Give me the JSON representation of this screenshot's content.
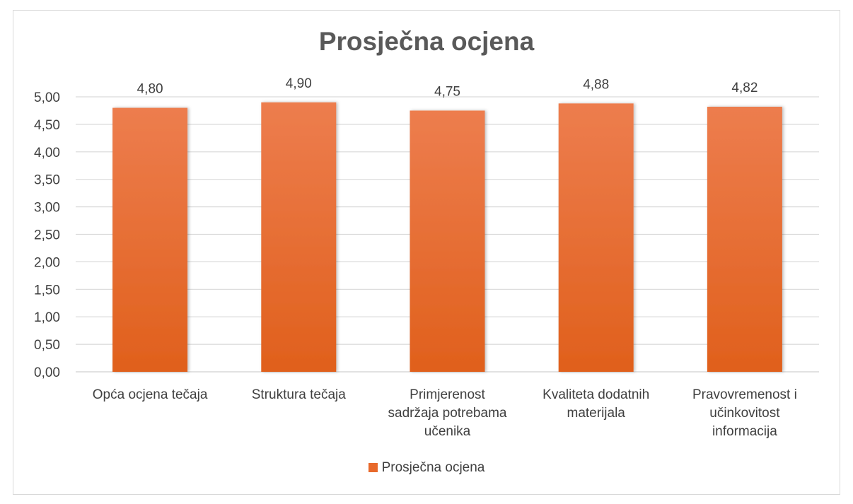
{
  "chart_data": {
    "type": "bar",
    "title": "Prosječna ocjena",
    "categories": [
      [
        "Opća ocjena tečaja"
      ],
      [
        "Struktura tečaja"
      ],
      [
        "Primjerenost",
        "sadržaja potrebama",
        "učenika"
      ],
      [
        "Kvaliteta dodatnih",
        "materijala"
      ],
      [
        "Pravovremenost i",
        "učinkovitost",
        "informacija"
      ]
    ],
    "series": [
      {
        "name": "Prosječna ocjena",
        "values": [
          4.8,
          4.9,
          4.75,
          4.88,
          4.82
        ],
        "labels": [
          "4,80",
          "4,90",
          "4,75",
          "4,88",
          "4,82"
        ],
        "color_top": "#ED7D4E",
        "color_bottom": "#E0601C"
      }
    ],
    "yticks": [
      "0,00",
      "0,50",
      "1,00",
      "1,50",
      "2,00",
      "2,50",
      "3,00",
      "3,50",
      "4,00",
      "4,50",
      "5,00"
    ],
    "ylim": [
      0,
      5
    ],
    "grid": true,
    "legend": "bottom",
    "xlabel": "",
    "ylabel": ""
  }
}
